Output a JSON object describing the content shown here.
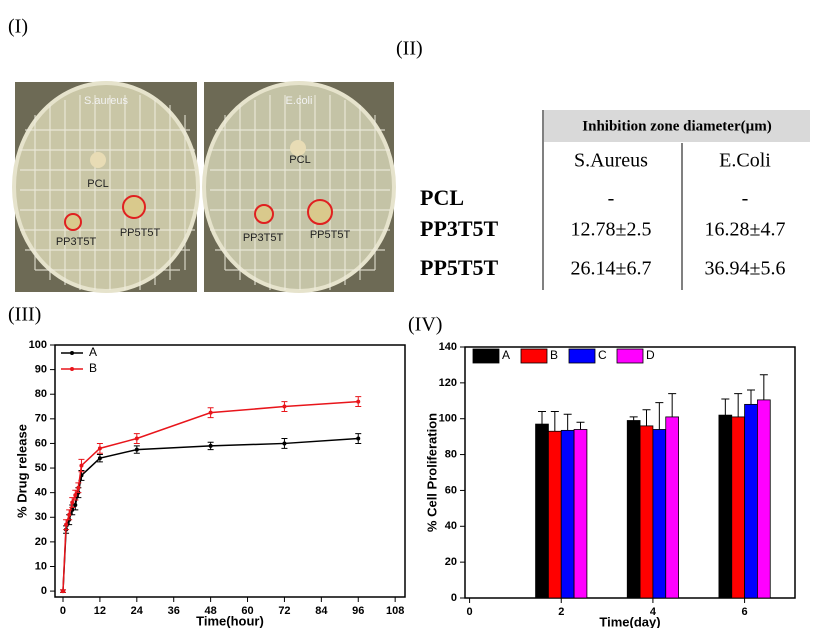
{
  "panels": {
    "i": "(I)",
    "ii": "(II)",
    "iii": "(III)",
    "iv": "(IV)"
  },
  "photo": {
    "left_title": "S.aureus",
    "right_title": "E.coli",
    "left_labels": [
      "PCL",
      "PP3T5T",
      "PP5T5T"
    ],
    "right_labels": [
      "PCL",
      "PP3T5T",
      "PP5T5T"
    ]
  },
  "table": {
    "header": "Inhibition zone diameter(µm)",
    "columns": [
      "S.Aureus",
      "E.Coli"
    ],
    "rows": [
      [
        "PCL",
        "-",
        "-"
      ],
      [
        "PP3T5T",
        "12.78±2.5",
        "16.28±4.7"
      ],
      [
        "PP5T5T",
        "26.14±6.7",
        "36.94±5.6"
      ]
    ]
  },
  "chart_data": [
    {
      "type": "line",
      "x_label": "Time(hour)",
      "y_label": "% Drug release",
      "x": [
        0,
        1,
        2,
        3,
        4,
        5,
        6,
        12,
        24,
        48,
        72,
        96
      ],
      "series": [
        {
          "name": "A",
          "color": "#000000",
          "values": [
            0,
            25,
            29,
            33,
            35,
            40,
            47,
            54,
            57.5,
            59,
            60,
            62
          ],
          "errors": [
            0.5,
            1.5,
            2,
            2,
            2,
            2,
            2,
            1.5,
            1.5,
            1.5,
            2,
            2
          ]
        },
        {
          "name": "B",
          "color": "#e8151b",
          "values": [
            0,
            27,
            31,
            36,
            39,
            42,
            51,
            58,
            62,
            72.5,
            75,
            77
          ],
          "errors": [
            0.5,
            2,
            2,
            2,
            2,
            2,
            2.5,
            2,
            2,
            2,
            2,
            2
          ]
        }
      ],
      "xlim": [
        -2.6,
        111.2
      ],
      "xticks": [
        0,
        12,
        24,
        36,
        48,
        60,
        72,
        84,
        96,
        108
      ],
      "ylim": [
        -2.4,
        100
      ],
      "yticks": [
        0,
        10,
        20,
        30,
        40,
        50,
        60,
        70,
        80,
        90,
        100
      ],
      "legend": "upper left"
    },
    {
      "type": "bar",
      "x_label": "Time(day)",
      "y_label": "% Cell Proliferation",
      "x": [
        2,
        4,
        6
      ],
      "series": [
        {
          "name": "A",
          "color": "#000000",
          "values": [
            97,
            99,
            102
          ],
          "errors": [
            7,
            2,
            9
          ]
        },
        {
          "name": "B",
          "color": "#ff0000",
          "values": [
            93,
            96,
            101
          ],
          "errors": [
            11,
            9,
            13
          ]
        },
        {
          "name": "C",
          "color": "#0000ff",
          "values": [
            93.5,
            94,
            108
          ],
          "errors": [
            9,
            15,
            8
          ]
        },
        {
          "name": "D",
          "color": "#ff00ff",
          "values": [
            94,
            101,
            110.5
          ],
          "errors": [
            4,
            13,
            14
          ]
        }
      ],
      "xlim": [
        -0.1,
        7.1
      ],
      "xticks": [
        0,
        2,
        4,
        6
      ],
      "ylim": [
        0,
        140
      ],
      "yticks": [
        0,
        20,
        40,
        60,
        80,
        100,
        120,
        140
      ],
      "legend": "top"
    }
  ]
}
